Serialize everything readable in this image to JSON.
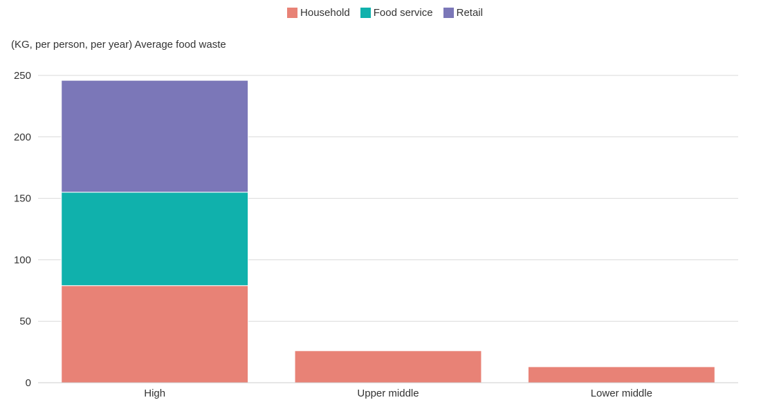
{
  "chart_data": {
    "type": "bar",
    "stacked": true,
    "title": "",
    "ylabel": "(KG, per person, per year) Average food waste",
    "xlabel": "",
    "categories": [
      "High",
      "Upper middle",
      "Lower middle"
    ],
    "series": [
      {
        "name": "Household",
        "color": "#E88276",
        "values": [
          79,
          26,
          13
        ]
      },
      {
        "name": "Food service",
        "color": "#10B1AC",
        "values": [
          76,
          0,
          0
        ]
      },
      {
        "name": "Retail",
        "color": "#7B77B8",
        "values": [
          91,
          0,
          0
        ]
      }
    ],
    "ylim": [
      0,
      250
    ],
    "yticks": [
      0,
      50,
      100,
      150,
      200,
      250
    ],
    "grid": true,
    "legend_position": "top-center"
  }
}
